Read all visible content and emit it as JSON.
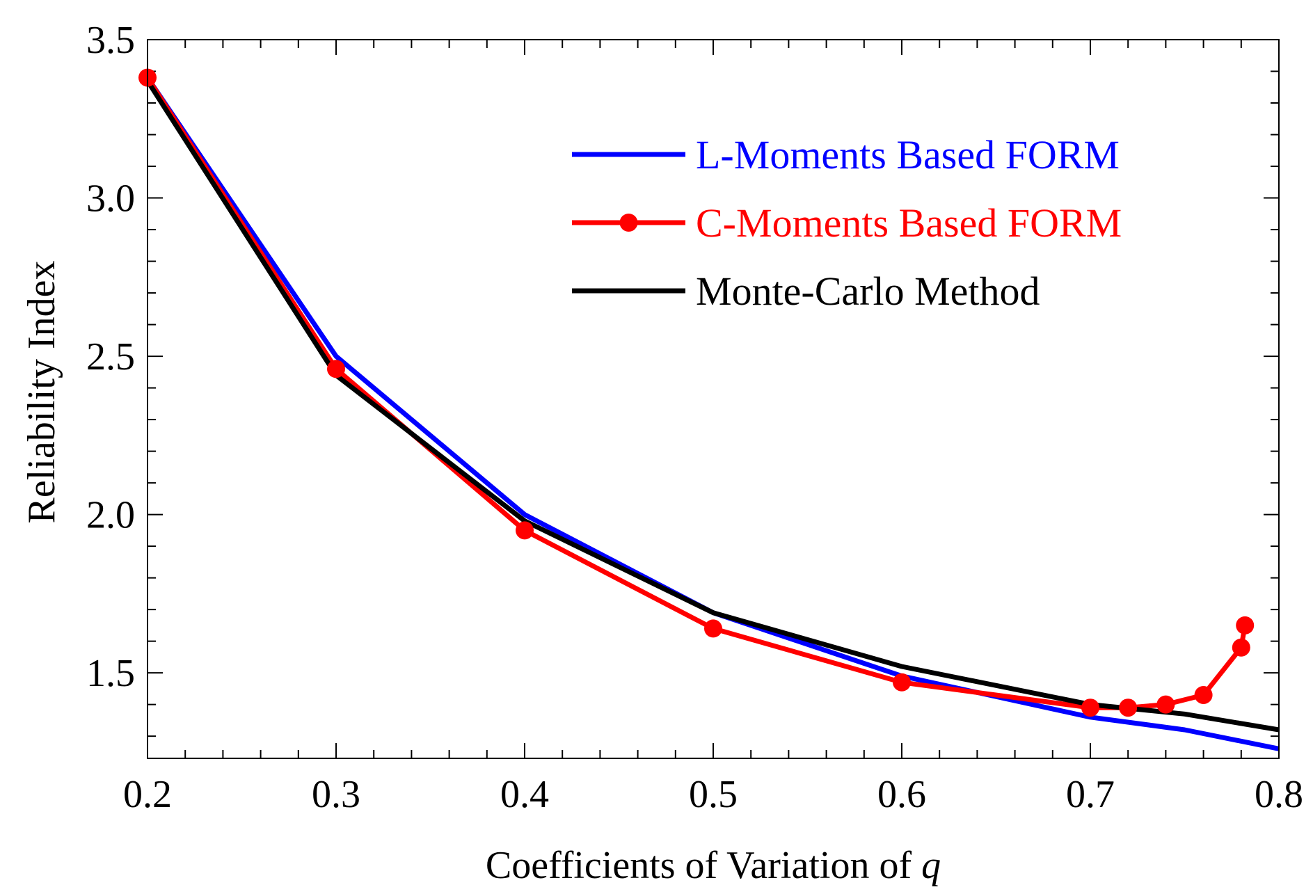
{
  "chart_data": {
    "type": "line",
    "title": "",
    "xlabel_prefix": "Coefficients of Variation of ",
    "xlabel_var": "q",
    "ylabel": "Reliability Index",
    "xlim": [
      0.2,
      0.8
    ],
    "ylim": [
      1.23,
      3.5
    ],
    "x_ticks": [
      0.2,
      0.3,
      0.4,
      0.5,
      0.6,
      0.7,
      0.8
    ],
    "x_tick_labels": [
      "0.2",
      "0.3",
      "0.4",
      "0.5",
      "0.6",
      "0.7",
      "0.8"
    ],
    "y_ticks": [
      1.5,
      2.0,
      2.5,
      3.0,
      3.5
    ],
    "y_tick_labels": [
      "1.5",
      "2.0",
      "2.5",
      "3.0",
      "3.5"
    ],
    "x_minor_step": 0.02,
    "y_minor_step": 0.1,
    "legend_position": "top-right",
    "grid": false,
    "series": [
      {
        "name": "L-Moments Based FORM",
        "color": "#0000ff",
        "markers": false,
        "x": [
          0.2,
          0.3,
          0.4,
          0.5,
          0.6,
          0.7,
          0.75,
          0.8
        ],
        "y": [
          3.38,
          2.5,
          2.0,
          1.69,
          1.49,
          1.36,
          1.32,
          1.26
        ]
      },
      {
        "name": "C-Moments Based FORM",
        "color": "#ff0000",
        "markers": true,
        "x": [
          0.2,
          0.3,
          0.4,
          0.5,
          0.6,
          0.7,
          0.72,
          0.74,
          0.76,
          0.78,
          0.782
        ],
        "y": [
          3.38,
          2.46,
          1.95,
          1.64,
          1.47,
          1.39,
          1.39,
          1.4,
          1.43,
          1.58,
          1.65
        ]
      },
      {
        "name": "Monte-Carlo Method",
        "color": "#000000",
        "markers": false,
        "x": [
          0.2,
          0.3,
          0.4,
          0.5,
          0.6,
          0.7,
          0.75,
          0.8
        ],
        "y": [
          3.37,
          2.44,
          1.98,
          1.69,
          1.52,
          1.4,
          1.37,
          1.32
        ]
      }
    ]
  }
}
